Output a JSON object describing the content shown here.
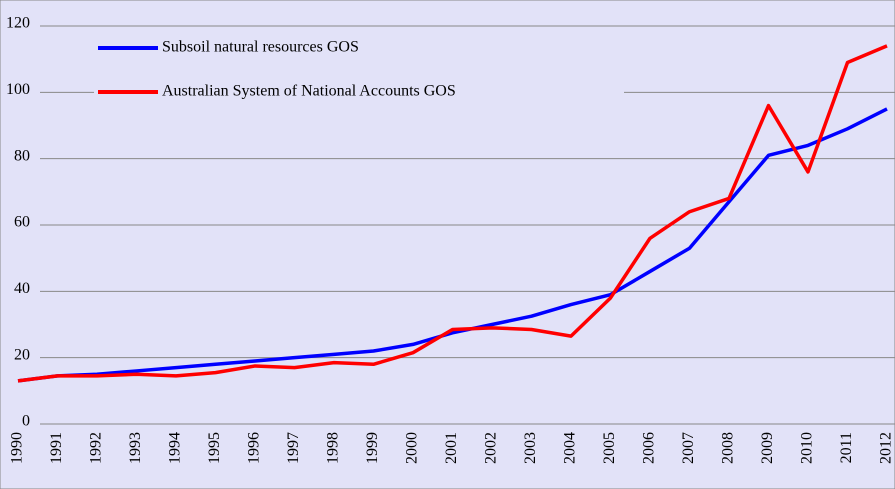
{
  "chart_data": {
    "type": "line",
    "categories": [
      "1990",
      "1991",
      "1992",
      "1993",
      "1994",
      "1995",
      "1996",
      "1997",
      "1998",
      "1999",
      "2000",
      "2001",
      "2002",
      "2003",
      "2004",
      "2005",
      "2006",
      "2007",
      "2008",
      "2009",
      "2010",
      "2011",
      "2012"
    ],
    "series": [
      {
        "name": "Subsoil natural resources GOS",
        "color": "#0000ff",
        "values": [
          13,
          14.5,
          15,
          16,
          17,
          18,
          19,
          20,
          21,
          22,
          24,
          27.5,
          30,
          32.5,
          36,
          39,
          46,
          53,
          67,
          81,
          84,
          89,
          95
        ]
      },
      {
        "name": "Australian System of National Accounts GOS",
        "color": "#ff0000",
        "values": [
          13,
          14.5,
          14.5,
          15,
          14.5,
          15.5,
          17.5,
          17,
          18.5,
          18,
          21.5,
          28.5,
          29,
          28.5,
          26.5,
          38,
          56,
          64,
          68,
          96,
          76,
          109,
          114
        ]
      }
    ],
    "ylim": [
      0,
      120
    ],
    "yticks": [
      0,
      20,
      40,
      60,
      80,
      100,
      120
    ],
    "grid": true,
    "legend": "top-left"
  }
}
